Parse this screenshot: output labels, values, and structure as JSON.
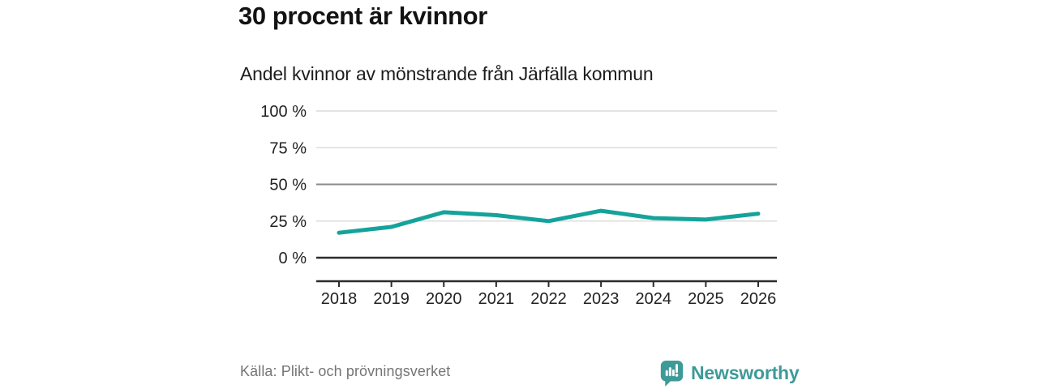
{
  "colors": {
    "accent_line": "#14a39b",
    "brand_teal": "#3e9a99",
    "grid_light": "#dcdcdc",
    "grid_mid": "#8a8a8a",
    "axis_dark": "#2b2b2b",
    "tick_label": "#222222",
    "title_text": "#121212",
    "muted_text": "#757575",
    "background": "#ffffff"
  },
  "footer": {
    "brand": "Newsworthy"
  },
  "chart_data": {
    "type": "line",
    "title": "30 procent är kvinnor",
    "subtitle": "Andel kvinnor av mönstrande från Järfälla kommun",
    "source": "Källa: Plikt- och prövningsverket",
    "x": [
      "2018",
      "2019",
      "2020",
      "2021",
      "2022",
      "2023",
      "2024",
      "2025",
      "2026"
    ],
    "series": [
      {
        "name": "Andel kvinnor av mönstrande",
        "color": "#14a39b",
        "values": [
          17,
          21,
          31,
          29,
          25,
          32,
          27,
          26,
          30
        ]
      }
    ],
    "ylim": [
      0,
      100
    ],
    "yticks": [
      {
        "value": 100,
        "label": "100 %"
      },
      {
        "value": 75,
        "label": "75 %"
      },
      {
        "value": 50,
        "label": "50 %"
      },
      {
        "value": 25,
        "label": "25 %"
      },
      {
        "value": 0,
        "label": "0 %"
      }
    ],
    "grid": true,
    "legend": "none"
  }
}
